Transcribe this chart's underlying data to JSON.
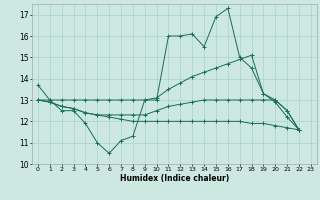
{
  "xlabel": "Humidex (Indice chaleur)",
  "xlim": [
    -0.5,
    23.5
  ],
  "ylim": [
    10,
    17.5
  ],
  "yticks": [
    10,
    11,
    12,
    13,
    14,
    15,
    16,
    17
  ],
  "xticks": [
    0,
    1,
    2,
    3,
    4,
    5,
    6,
    7,
    8,
    9,
    10,
    11,
    12,
    13,
    14,
    15,
    16,
    17,
    18,
    19,
    20,
    21,
    22,
    23
  ],
  "bg_color": "#cce8e0",
  "grid_color": "#aad4ca",
  "line_color": "#1a6b5a",
  "series": [
    [
      13.7,
      13.0,
      12.5,
      12.5,
      11.9,
      11.0,
      10.5,
      11.1,
      11.3,
      13.0,
      13.0,
      16.0,
      16.0,
      16.1,
      15.5,
      16.9,
      17.3,
      15.0,
      14.5,
      13.3,
      12.9,
      12.2,
      11.6
    ],
    [
      13.0,
      13.0,
      13.0,
      13.0,
      13.0,
      13.0,
      13.0,
      13.0,
      13.0,
      13.0,
      13.1,
      13.5,
      13.8,
      14.1,
      14.3,
      14.5,
      14.7,
      14.9,
      15.1,
      13.3,
      13.0,
      12.5,
      11.6
    ],
    [
      13.0,
      12.9,
      12.7,
      12.6,
      12.4,
      12.3,
      12.2,
      12.1,
      12.0,
      12.0,
      12.0,
      12.0,
      12.0,
      12.0,
      12.0,
      12.0,
      12.0,
      12.0,
      11.9,
      11.9,
      11.8,
      11.7,
      11.6
    ],
    [
      13.0,
      12.9,
      12.7,
      12.6,
      12.4,
      12.3,
      12.3,
      12.3,
      12.3,
      12.3,
      12.5,
      12.7,
      12.8,
      12.9,
      13.0,
      13.0,
      13.0,
      13.0,
      13.0,
      13.0,
      13.0,
      12.5,
      11.6
    ]
  ]
}
